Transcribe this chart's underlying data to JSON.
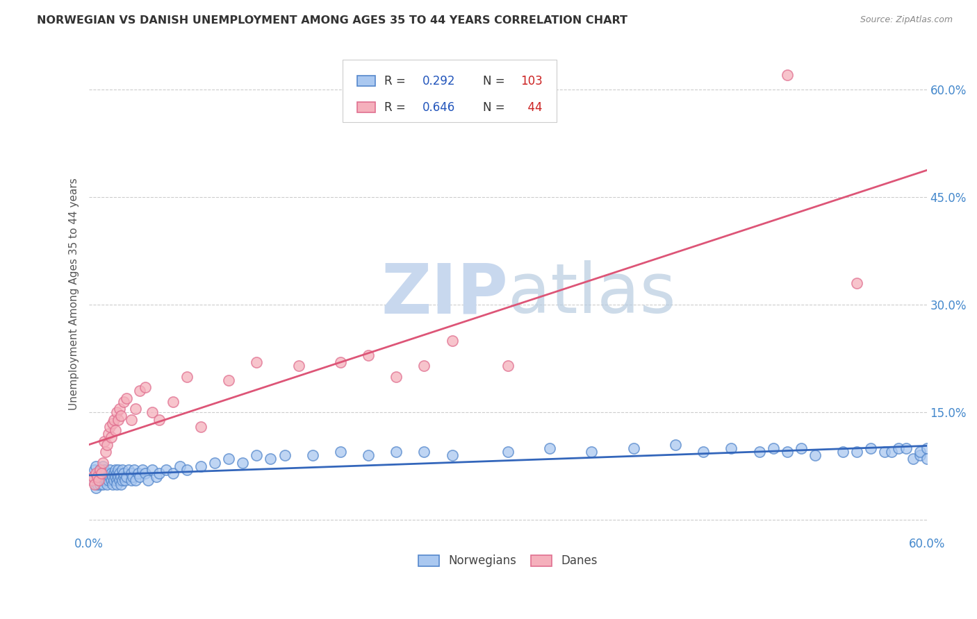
{
  "title": "NORWEGIAN VS DANISH UNEMPLOYMENT AMONG AGES 35 TO 44 YEARS CORRELATION CHART",
  "source": "Source: ZipAtlas.com",
  "ylabel": "Unemployment Among Ages 35 to 44 years",
  "xlim": [
    0.0,
    0.6
  ],
  "ylim": [
    -0.02,
    0.65
  ],
  "xtick_positions": [
    0.0,
    0.1,
    0.2,
    0.3,
    0.4,
    0.5,
    0.6
  ],
  "xtick_labels": [
    "0.0%",
    "",
    "",
    "",
    "",
    "",
    "60.0%"
  ],
  "ytick_positions": [
    0.0,
    0.15,
    0.3,
    0.45,
    0.6
  ],
  "ytick_labels": [
    "",
    "15.0%",
    "30.0%",
    "45.0%",
    "60.0%"
  ],
  "norwegian_R": 0.292,
  "norwegian_N": 103,
  "danish_R": 0.646,
  "danish_N": 44,
  "norwegian_color": "#aac8f0",
  "danish_color": "#f5b0bc",
  "norwegian_edge_color": "#5588cc",
  "danish_edge_color": "#e07090",
  "norwegian_line_color": "#3366bb",
  "danish_line_color": "#dd5577",
  "legend_R_color": "#2255bb",
  "legend_N_color": "#cc2222",
  "watermark_color": "#d5e5f5",
  "background_color": "#ffffff",
  "grid_color": "#cccccc",
  "tick_color": "#4488cc",
  "title_color": "#333333",
  "source_color": "#888888",
  "ylabel_color": "#555555",
  "norwegian_x": [
    0.003,
    0.004,
    0.005,
    0.005,
    0.006,
    0.006,
    0.007,
    0.007,
    0.008,
    0.008,
    0.009,
    0.009,
    0.01,
    0.01,
    0.01,
    0.011,
    0.011,
    0.012,
    0.012,
    0.013,
    0.013,
    0.014,
    0.014,
    0.015,
    0.015,
    0.016,
    0.016,
    0.017,
    0.017,
    0.018,
    0.018,
    0.019,
    0.019,
    0.02,
    0.02,
    0.02,
    0.021,
    0.021,
    0.022,
    0.022,
    0.023,
    0.023,
    0.024,
    0.024,
    0.025,
    0.025,
    0.026,
    0.027,
    0.028,
    0.03,
    0.03,
    0.031,
    0.032,
    0.033,
    0.035,
    0.036,
    0.038,
    0.04,
    0.042,
    0.045,
    0.048,
    0.05,
    0.055,
    0.06,
    0.065,
    0.07,
    0.08,
    0.09,
    0.1,
    0.11,
    0.12,
    0.13,
    0.14,
    0.16,
    0.18,
    0.2,
    0.22,
    0.24,
    0.26,
    0.3,
    0.33,
    0.36,
    0.39,
    0.42,
    0.44,
    0.46,
    0.48,
    0.49,
    0.5,
    0.51,
    0.52,
    0.54,
    0.55,
    0.56,
    0.57,
    0.575,
    0.58,
    0.585,
    0.59,
    0.595,
    0.595,
    0.6,
    0.6
  ],
  "norwegian_y": [
    0.055,
    0.07,
    0.045,
    0.075,
    0.06,
    0.05,
    0.065,
    0.055,
    0.07,
    0.05,
    0.06,
    0.055,
    0.065,
    0.05,
    0.075,
    0.06,
    0.07,
    0.055,
    0.065,
    0.06,
    0.05,
    0.065,
    0.055,
    0.07,
    0.06,
    0.055,
    0.065,
    0.05,
    0.06,
    0.065,
    0.055,
    0.07,
    0.06,
    0.055,
    0.065,
    0.05,
    0.06,
    0.07,
    0.055,
    0.065,
    0.05,
    0.06,
    0.07,
    0.055,
    0.06,
    0.065,
    0.055,
    0.06,
    0.07,
    0.055,
    0.065,
    0.06,
    0.07,
    0.055,
    0.065,
    0.06,
    0.07,
    0.065,
    0.055,
    0.07,
    0.06,
    0.065,
    0.07,
    0.065,
    0.075,
    0.07,
    0.075,
    0.08,
    0.085,
    0.08,
    0.09,
    0.085,
    0.09,
    0.09,
    0.095,
    0.09,
    0.095,
    0.095,
    0.09,
    0.095,
    0.1,
    0.095,
    0.1,
    0.105,
    0.095,
    0.1,
    0.095,
    0.1,
    0.095,
    0.1,
    0.09,
    0.095,
    0.095,
    0.1,
    0.095,
    0.095,
    0.1,
    0.1,
    0.085,
    0.09,
    0.095,
    0.1,
    0.085
  ],
  "danish_x": [
    0.002,
    0.003,
    0.004,
    0.005,
    0.006,
    0.007,
    0.008,
    0.009,
    0.01,
    0.011,
    0.012,
    0.013,
    0.014,
    0.015,
    0.016,
    0.017,
    0.018,
    0.019,
    0.02,
    0.021,
    0.022,
    0.023,
    0.025,
    0.027,
    0.03,
    0.033,
    0.036,
    0.04,
    0.045,
    0.05,
    0.06,
    0.07,
    0.08,
    0.1,
    0.12,
    0.15,
    0.18,
    0.2,
    0.22,
    0.24,
    0.26,
    0.3,
    0.5,
    0.55
  ],
  "danish_y": [
    0.055,
    0.06,
    0.05,
    0.065,
    0.06,
    0.055,
    0.07,
    0.065,
    0.08,
    0.11,
    0.095,
    0.105,
    0.12,
    0.13,
    0.115,
    0.135,
    0.14,
    0.125,
    0.15,
    0.14,
    0.155,
    0.145,
    0.165,
    0.17,
    0.14,
    0.155,
    0.18,
    0.185,
    0.15,
    0.14,
    0.165,
    0.2,
    0.13,
    0.195,
    0.22,
    0.215,
    0.22,
    0.23,
    0.2,
    0.215,
    0.25,
    0.215,
    0.62,
    0.33
  ]
}
